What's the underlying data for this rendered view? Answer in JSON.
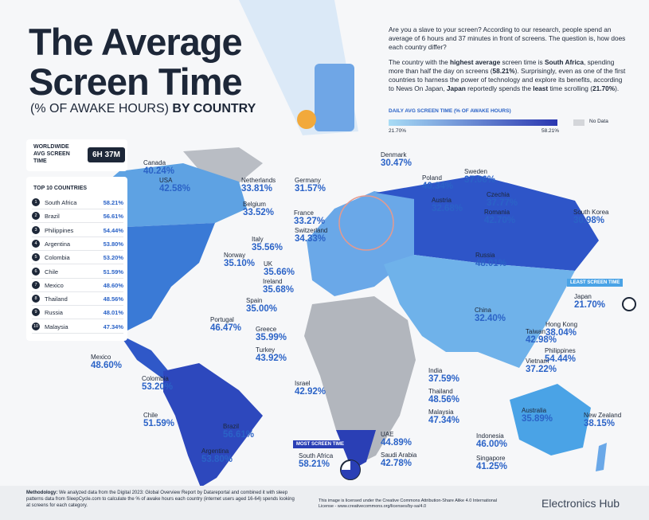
{
  "header": {
    "title_line1": "The Average",
    "title_line2": "Screen Time",
    "subtitle_part1": "(% OF AWAKE HOURS)",
    "subtitle_part2": "BY COUNTRY"
  },
  "intro": {
    "paragraph1": "Are you a slave to your screen? According to our research, people spend an average of 6 hours and 37 minutes in front of screens. The question is, how does each country differ?",
    "paragraph2": [
      "The country with the ",
      "highest average",
      " screen time is ",
      "South Africa",
      ", spending more than half the day on screens (",
      "58.21%",
      "). Surprisingly, even as one of the first countries to harness the power of technology and explore its benefits, according to News On Japan, ",
      "Japan",
      " reportedly spends the ",
      "least",
      " time scrolling (",
      "21.70%",
      ")."
    ]
  },
  "legend": {
    "title": "DAILY AVG SCREEN TIME (% OF AWAKE HOURS)",
    "min": "21.70%",
    "max": "58.21%",
    "no_data": "No Data"
  },
  "worldwide": {
    "label": "WORLDWIDE AVG SCREEN TIME",
    "value": "6H 37M"
  },
  "top10": {
    "title": "TOP 10 COUNTRIES",
    "rows": [
      {
        "rank": "1",
        "country": "South Africa",
        "value": "58.21%"
      },
      {
        "rank": "2",
        "country": "Brazil",
        "value": "56.61%"
      },
      {
        "rank": "3",
        "country": "Philippines",
        "value": "54.44%"
      },
      {
        "rank": "4",
        "country": "Argentina",
        "value": "53.80%"
      },
      {
        "rank": "5",
        "country": "Colombia",
        "value": "53.20%"
      },
      {
        "rank": "6",
        "country": "Chile",
        "value": "51.59%"
      },
      {
        "rank": "7",
        "country": "Mexico",
        "value": "48.60%"
      },
      {
        "rank": "8",
        "country": "Thailand",
        "value": "48.56%"
      },
      {
        "rank": "9",
        "country": "Russia",
        "value": "48.01%"
      },
      {
        "rank": "10",
        "country": "Malaysia",
        "value": "47.34%"
      }
    ]
  },
  "countries": [
    {
      "name": "Canada",
      "value": "40.24%"
    },
    {
      "name": "USA",
      "value": "42.58%"
    },
    {
      "name": "Netherlands",
      "value": "33.81%"
    },
    {
      "name": "Germany",
      "value": "31.57%"
    },
    {
      "name": "Denmark",
      "value": "30.47%"
    },
    {
      "name": "Sweden",
      "value": "37.06%"
    },
    {
      "name": "Poland",
      "value": "40.34%"
    },
    {
      "name": "Czechia",
      "value": "37.77%"
    },
    {
      "name": "Belgium",
      "value": "33.52%"
    },
    {
      "name": "France",
      "value": "33.27%"
    },
    {
      "name": "Austria",
      "value": "32.68%"
    },
    {
      "name": "Romania",
      "value": "42.70%"
    },
    {
      "name": "South Korea",
      "value": "30.98%"
    },
    {
      "name": "Switzerland",
      "value": "34.33%"
    },
    {
      "name": "Italy",
      "value": "35.56%"
    },
    {
      "name": "Norway",
      "value": "35.10%"
    },
    {
      "name": "Russia",
      "value": "48.01%"
    },
    {
      "name": "UK",
      "value": "35.66%"
    },
    {
      "name": "Ireland",
      "value": "35.68%"
    },
    {
      "name": "Japan",
      "value": "21.70%"
    },
    {
      "name": "Spain",
      "value": "35.00%"
    },
    {
      "name": "Portugal",
      "value": "46.47%"
    },
    {
      "name": "China",
      "value": "32.40%"
    },
    {
      "name": "Hong Kong",
      "value": "38.04%"
    },
    {
      "name": "Greece",
      "value": "35.99%"
    },
    {
      "name": "Taiwan",
      "value": "42.98%"
    },
    {
      "name": "Turkey",
      "value": "43.92%"
    },
    {
      "name": "Philippines",
      "value": "54.44%"
    },
    {
      "name": "Mexico",
      "value": "48.60%"
    },
    {
      "name": "Vietnam",
      "value": "37.22%"
    },
    {
      "name": "India",
      "value": "37.59%"
    },
    {
      "name": "Colombia",
      "value": "53.20%"
    },
    {
      "name": "Israel",
      "value": "42.92%"
    },
    {
      "name": "Thailand",
      "value": "48.56%"
    },
    {
      "name": "Malaysia",
      "value": "47.34%"
    },
    {
      "name": "Chile",
      "value": "51.59%"
    },
    {
      "name": "Australia",
      "value": "35.89%"
    },
    {
      "name": "New Zealand",
      "value": "38.15%"
    },
    {
      "name": "Brazil",
      "value": "56.61%"
    },
    {
      "name": "UAE",
      "value": "44.89%"
    },
    {
      "name": "Indonesia",
      "value": "46.00%"
    },
    {
      "name": "Argentina",
      "value": "53.80%"
    },
    {
      "name": "Saudi Arabia",
      "value": "42.78%"
    },
    {
      "name": "South Africa",
      "value": "58.21%"
    },
    {
      "name": "Singapore",
      "value": "41.25%"
    }
  ],
  "badges": {
    "least": "LEAST SCREEN TIME",
    "most": "MOST SCREEN TIME"
  },
  "footer": {
    "methodology_label": "Methodology:",
    "methodology": " We analyzed data from the Digital 2023: Global Overview Report by Datareportal and combined it with sleep patterns data from SleepCycle.com to calculate the % of awake hours each country (internet users aged 16-64) spends looking at screens for each category.",
    "license": "This image is licensed under the Creative Commons Attribution-Share Alike 4.0 International License - www.creativecommons.org/licenses/by-sa/4.0",
    "brand": "Electronics Hub"
  }
}
